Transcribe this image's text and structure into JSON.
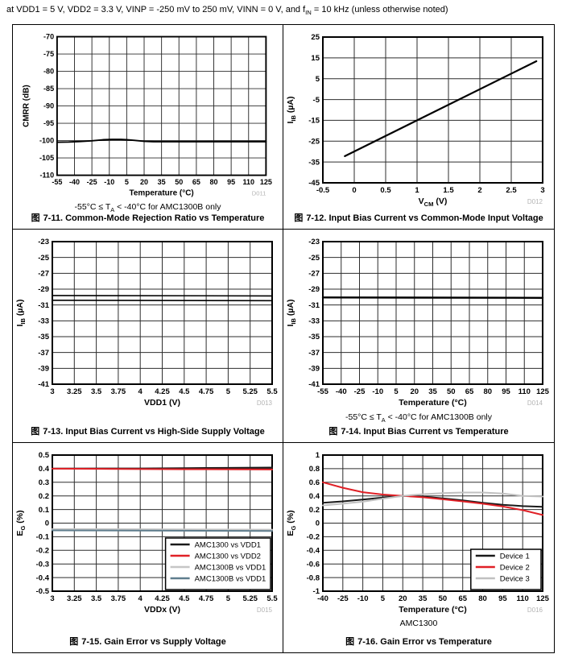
{
  "header": {
    "parts": [
      {
        "t": "at VDD1 = 5 V, VDD2 = 3.3 V, VINP = -250 mV to 250 mV, VINN = 0 V, and f"
      },
      {
        "sub": "IN"
      },
      {
        "t": " = 10 kHz (unless otherwise noted)"
      }
    ]
  },
  "figure_marker": "图",
  "chart_data": [
    {
      "id": "D011",
      "type": "line",
      "caption": "7-11. Common-Mode Rejection Ratio vs Temperature",
      "watermark": "D011",
      "note_parts": [
        {
          "t": "-55°C ≤ T"
        },
        {
          "sub": "A"
        },
        {
          "t": " < -40°C for AMC1300B only"
        }
      ],
      "xlabel_parts": [
        {
          "t": "Temperature (°C)"
        }
      ],
      "ylabel_parts": [
        {
          "t": "CMRR (dB)"
        }
      ],
      "xlim": [
        -55,
        125
      ],
      "ylim": [
        -110,
        -70
      ],
      "xticks": [
        -55,
        -40,
        -25,
        -10,
        5,
        20,
        35,
        50,
        65,
        80,
        95,
        110,
        125
      ],
      "yticks": [
        -70,
        -75,
        -80,
        -85,
        -90,
        -95,
        -100,
        -105,
        -110
      ],
      "legend": false,
      "series": [
        {
          "name": "CMRR",
          "color": "#000000",
          "width": 2,
          "points": [
            [
              -55,
              -100.45
            ],
            [
              -45,
              -100.4
            ],
            [
              -35,
              -100.25
            ],
            [
              -25,
              -100.05
            ],
            [
              -15,
              -99.75
            ],
            [
              -8,
              -99.65
            ],
            [
              0,
              -99.65
            ],
            [
              5,
              -99.72
            ],
            [
              12,
              -99.95
            ],
            [
              20,
              -100.2
            ],
            [
              28,
              -100.3
            ],
            [
              40,
              -100.32
            ],
            [
              60,
              -100.32
            ],
            [
              80,
              -100.3
            ],
            [
              100,
              -100.3
            ],
            [
              125,
              -100.3
            ]
          ]
        }
      ]
    },
    {
      "id": "D012",
      "type": "line",
      "caption": "7-12. Input Bias Current vs Common-Mode Input Voltage",
      "watermark": "D012",
      "note_parts": null,
      "xlabel_parts": [
        {
          "t": "V"
        },
        {
          "sub": "CM"
        },
        {
          "t": " (V)"
        }
      ],
      "ylabel_parts": [
        {
          "t": "I"
        },
        {
          "sub": "IB"
        },
        {
          "t": " (µA)"
        }
      ],
      "xlim": [
        -0.5,
        3
      ],
      "ylim": [
        -45,
        25
      ],
      "xticks": [
        -0.5,
        0,
        0.5,
        1,
        1.5,
        2,
        2.5,
        3
      ],
      "yticks": [
        25,
        15,
        5,
        -5,
        -15,
        -25,
        -35,
        -45
      ],
      "legend": false,
      "series": [
        {
          "name": "IIB",
          "color": "#000000",
          "width": 2.2,
          "points": [
            [
              -0.15,
              -32.2
            ],
            [
              1,
              -15
            ],
            [
              2.9,
              13.4
            ]
          ]
        }
      ]
    },
    {
      "id": "D013",
      "type": "line",
      "caption": "7-13. Input Bias Current vs High-Side Supply Voltage",
      "watermark": "D013",
      "note_parts": null,
      "xlabel_parts": [
        {
          "t": "VDD1 (V)"
        }
      ],
      "ylabel_parts": [
        {
          "t": "I"
        },
        {
          "sub": "IB"
        },
        {
          "t": " (µA)"
        }
      ],
      "xlim": [
        3,
        5.5
      ],
      "ylim": [
        -41,
        -23
      ],
      "xticks": [
        3,
        3.25,
        3.5,
        3.75,
        4,
        4.25,
        4.5,
        4.75,
        5,
        5.25,
        5.5
      ],
      "yticks": [
        -23,
        -25,
        -27,
        -29,
        -31,
        -33,
        -35,
        -37,
        -39,
        -41
      ],
      "legend": false,
      "series": [
        {
          "name": "IIB upper",
          "color": "#000000",
          "width": 1.6,
          "points": [
            [
              3,
              -29.8
            ],
            [
              5.5,
              -29.85
            ]
          ]
        },
        {
          "name": "IIB lower",
          "color": "#000000",
          "width": 1.6,
          "points": [
            [
              3,
              -30.4
            ],
            [
              5.5,
              -30.45
            ]
          ]
        }
      ]
    },
    {
      "id": "D014",
      "type": "line",
      "caption": "7-14. Input Bias Current vs Temperature",
      "watermark": "D014",
      "note_parts": [
        {
          "t": "-55°C ≤ T"
        },
        {
          "sub": "A"
        },
        {
          "t": " < -40°C for AMC1300B only"
        }
      ],
      "xlabel_parts": [
        {
          "t": "Temperature (°C)"
        }
      ],
      "ylabel_parts": [
        {
          "t": "I"
        },
        {
          "sub": "IB"
        },
        {
          "t": " (µA)"
        }
      ],
      "xlim": [
        -55,
        125
      ],
      "ylim": [
        -41,
        -23
      ],
      "xticks": [
        -55,
        -40,
        -25,
        -10,
        5,
        20,
        35,
        50,
        65,
        80,
        95,
        110,
        125
      ],
      "yticks": [
        -23,
        -25,
        -27,
        -29,
        -31,
        -33,
        -35,
        -37,
        -39,
        -41
      ],
      "legend": false,
      "series": [
        {
          "name": "IIB",
          "color": "#000000",
          "width": 2.4,
          "points": [
            [
              -55,
              -30.05
            ],
            [
              125,
              -30.1
            ]
          ]
        }
      ]
    },
    {
      "id": "D015",
      "type": "line",
      "caption": "7-15. Gain Error vs Supply Voltage",
      "watermark": "D015",
      "note_parts": null,
      "xlabel_parts": [
        {
          "t": "VDDx (V)"
        }
      ],
      "ylabel_parts": [
        {
          "t": "E"
        },
        {
          "sub": "G"
        },
        {
          "t": " (%)"
        }
      ],
      "xlim": [
        3,
        5.5
      ],
      "ylim": [
        -0.5,
        0.5
      ],
      "xticks": [
        3,
        3.25,
        3.5,
        3.75,
        4,
        4.25,
        4.5,
        4.75,
        5,
        5.25,
        5.5
      ],
      "yticks": [
        0.5,
        0.4,
        0.3,
        0.2,
        0.1,
        0,
        -0.1,
        -0.2,
        -0.3,
        -0.4,
        -0.5
      ],
      "legend": true,
      "series": [
        {
          "name": "AMC1300 vs VDD1",
          "color": "#1a1a1a",
          "width": 2,
          "points": [
            [
              3,
              0.401
            ],
            [
              4,
              0.402
            ],
            [
              4.5,
              0.404
            ],
            [
              5,
              0.406
            ],
            [
              5.5,
              0.408
            ]
          ]
        },
        {
          "name": "AMC1300 vs VDD2",
          "color": "#e02026",
          "width": 2,
          "points": [
            [
              3,
              0.4
            ],
            [
              3.75,
              0.398
            ],
            [
              4.5,
              0.396
            ],
            [
              5.5,
              0.394
            ]
          ]
        },
        {
          "name": "AMC1300B vs VDD1",
          "color": "#c6c6c6",
          "width": 2,
          "points": [
            [
              3,
              -0.044
            ],
            [
              5.5,
              -0.048
            ]
          ]
        },
        {
          "name": "AMC1300B vs VDD1",
          "color": "#5f7d8d",
          "width": 2,
          "points": [
            [
              3,
              -0.053
            ],
            [
              5.5,
              -0.058
            ]
          ]
        }
      ]
    },
    {
      "id": "D016",
      "type": "line",
      "caption": "7-16. Gain Error vs Temperature",
      "watermark": "D016",
      "note_parts": null,
      "sublabel": "AMC1300",
      "xlabel_parts": [
        {
          "t": "Temperature (°C)"
        }
      ],
      "ylabel_parts": [
        {
          "t": "E"
        },
        {
          "sub": "G"
        },
        {
          "t": " (%)"
        }
      ],
      "xlim": [
        -40,
        125
      ],
      "ylim": [
        -1,
        1
      ],
      "xticks": [
        -40,
        -25,
        -10,
        5,
        20,
        35,
        50,
        65,
        80,
        95,
        110,
        125
      ],
      "yticks": [
        1,
        0.8,
        0.6,
        0.4,
        0.2,
        0,
        -0.2,
        -0.4,
        -0.6,
        -0.8,
        -1
      ],
      "legend": true,
      "series": [
        {
          "name": "Device 1",
          "color": "#1a1a1a",
          "width": 2,
          "points": [
            [
              -40,
              0.3
            ],
            [
              -25,
              0.32
            ],
            [
              -10,
              0.345
            ],
            [
              5,
              0.375
            ],
            [
              20,
              0.4
            ],
            [
              35,
              0.39
            ],
            [
              50,
              0.365
            ],
            [
              65,
              0.335
            ],
            [
              80,
              0.3
            ],
            [
              95,
              0.27
            ],
            [
              110,
              0.25
            ],
            [
              125,
              0.24
            ]
          ]
        },
        {
          "name": "Device 2",
          "color": "#e02026",
          "width": 2,
          "points": [
            [
              -40,
              0.6
            ],
            [
              -25,
              0.52
            ],
            [
              -10,
              0.455
            ],
            [
              5,
              0.42
            ],
            [
              20,
              0.4
            ],
            [
              35,
              0.38
            ],
            [
              50,
              0.35
            ],
            [
              65,
              0.32
            ],
            [
              80,
              0.285
            ],
            [
              95,
              0.245
            ],
            [
              110,
              0.19
            ],
            [
              125,
              0.12
            ]
          ]
        },
        {
          "name": "Device 3",
          "color": "#c0c0c0",
          "width": 2,
          "points": [
            [
              -40,
              0.26
            ],
            [
              -25,
              0.285
            ],
            [
              -10,
              0.315
            ],
            [
              5,
              0.36
            ],
            [
              20,
              0.4
            ],
            [
              35,
              0.425
            ],
            [
              50,
              0.44
            ],
            [
              65,
              0.45
            ],
            [
              80,
              0.45
            ],
            [
              95,
              0.435
            ],
            [
              110,
              0.4
            ],
            [
              125,
              0.39
            ]
          ]
        }
      ]
    }
  ]
}
